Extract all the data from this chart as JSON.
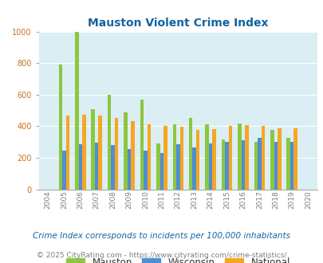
{
  "title": "Mauston Violent Crime Index",
  "years": [
    2004,
    2005,
    2006,
    2007,
    2008,
    2009,
    2010,
    2011,
    2012,
    2013,
    2014,
    2015,
    2016,
    2017,
    2018,
    2019,
    2020
  ],
  "mauston": [
    0,
    790,
    1000,
    510,
    600,
    490,
    570,
    290,
    410,
    455,
    410,
    315,
    415,
    300,
    375,
    325,
    0
  ],
  "wisconsin": [
    0,
    245,
    285,
    295,
    280,
    255,
    245,
    230,
    285,
    265,
    290,
    300,
    310,
    325,
    300,
    300,
    0
  ],
  "national": [
    0,
    470,
    475,
    470,
    455,
    430,
    410,
    400,
    398,
    375,
    380,
    400,
    405,
    400,
    388,
    387,
    0
  ],
  "mauston_color": "#8dc63f",
  "wisconsin_color": "#4d8ed4",
  "national_color": "#f5a623",
  "plot_bg": "#daeef3",
  "ylim": [
    0,
    1000
  ],
  "yticks": [
    0,
    200,
    400,
    600,
    800,
    1000
  ],
  "legend_labels": [
    "Mauston",
    "Wisconsin",
    "National"
  ],
  "footnote1": "Crime Index corresponds to incidents per 100,000 inhabitants",
  "footnote2": "© 2025 CityRating.com - https://www.cityrating.com/crime-statistics/",
  "title_color": "#1464a0",
  "ytick_color": "#c87020",
  "xtick_color": "#808080",
  "footnote1_color": "#1464a0",
  "footnote2_color": "#808080"
}
